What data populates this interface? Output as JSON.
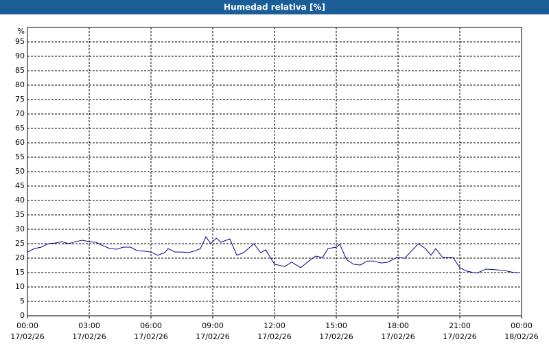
{
  "chart_data": {
    "type": "line",
    "title": "Humedad relativa [%]",
    "y_unit": "%",
    "xlim": [
      0,
      24
    ],
    "ylim": [
      0,
      100
    ],
    "xticks": [
      {
        "value": 0,
        "label": "00:00"
      },
      {
        "value": 3,
        "label": "03:00"
      },
      {
        "value": 6,
        "label": "06:00"
      },
      {
        "value": 9,
        "label": "09:00"
      },
      {
        "value": 12,
        "label": "12:00"
      },
      {
        "value": 15,
        "label": "15:00"
      },
      {
        "value": 18,
        "label": "18:00"
      },
      {
        "value": 21,
        "label": "21:00"
      },
      {
        "value": 24,
        "label": "00:00"
      }
    ],
    "xtick_dates": [
      "17/02/26",
      "17/02/26",
      "17/02/26",
      "17/02/26",
      "17/02/26",
      "17/02/26",
      "17/02/26",
      "17/02/26",
      "18/02/26"
    ],
    "yticks": [
      0,
      5,
      10,
      15,
      20,
      25,
      30,
      35,
      40,
      45,
      50,
      55,
      60,
      65,
      70,
      75,
      80,
      85,
      90,
      95
    ],
    "grid": true,
    "series": [
      {
        "name": "Humedad relativa",
        "color": "#00008b",
        "x": [
          0,
          0.33,
          0.67,
          1,
          1.33,
          1.67,
          2,
          2.33,
          2.67,
          3,
          3.33,
          3.67,
          4,
          4.33,
          4.67,
          5,
          5.33,
          5.67,
          6,
          6.33,
          6.67,
          6.83,
          7.17,
          7.5,
          7.83,
          8.17,
          8.4,
          8.67,
          8.9,
          9.17,
          9.4,
          9.83,
          10.17,
          10.5,
          11,
          11.33,
          11.57,
          12,
          12.5,
          12.83,
          13.27,
          13.67,
          14,
          14.33,
          14.6,
          15,
          15.17,
          15.5,
          15.83,
          16.17,
          16.5,
          16.83,
          17.17,
          17.5,
          17.93,
          18.33,
          18.67,
          19,
          19.33,
          19.6,
          19.83,
          20.17,
          20.67,
          21,
          21.33,
          21.83,
          22.27,
          22.67,
          23.17,
          23.5,
          23.83
        ],
        "values": [
          22.1,
          23.3,
          23.8,
          25,
          25.2,
          25.7,
          25,
          25.7,
          26.2,
          25.7,
          25.5,
          24.3,
          23.3,
          23.1,
          23.8,
          23.8,
          22.6,
          22.4,
          22.1,
          21,
          21.9,
          23.3,
          22.1,
          22.1,
          21.9,
          22.6,
          23.3,
          27.4,
          25,
          26.9,
          25.5,
          26.7,
          21,
          21.9,
          25,
          21.9,
          22.9,
          17.9,
          17.1,
          18.6,
          16.7,
          19,
          20.7,
          20.2,
          23.3,
          23.8,
          24.8,
          19.5,
          17.9,
          17.6,
          19,
          19,
          18.3,
          18.6,
          20.2,
          20,
          22.6,
          25,
          23.3,
          21,
          23.3,
          20.2,
          20.2,
          16.7,
          15.5,
          14.8,
          16.2,
          16,
          15.7,
          15.2,
          14.8
        ]
      }
    ]
  }
}
